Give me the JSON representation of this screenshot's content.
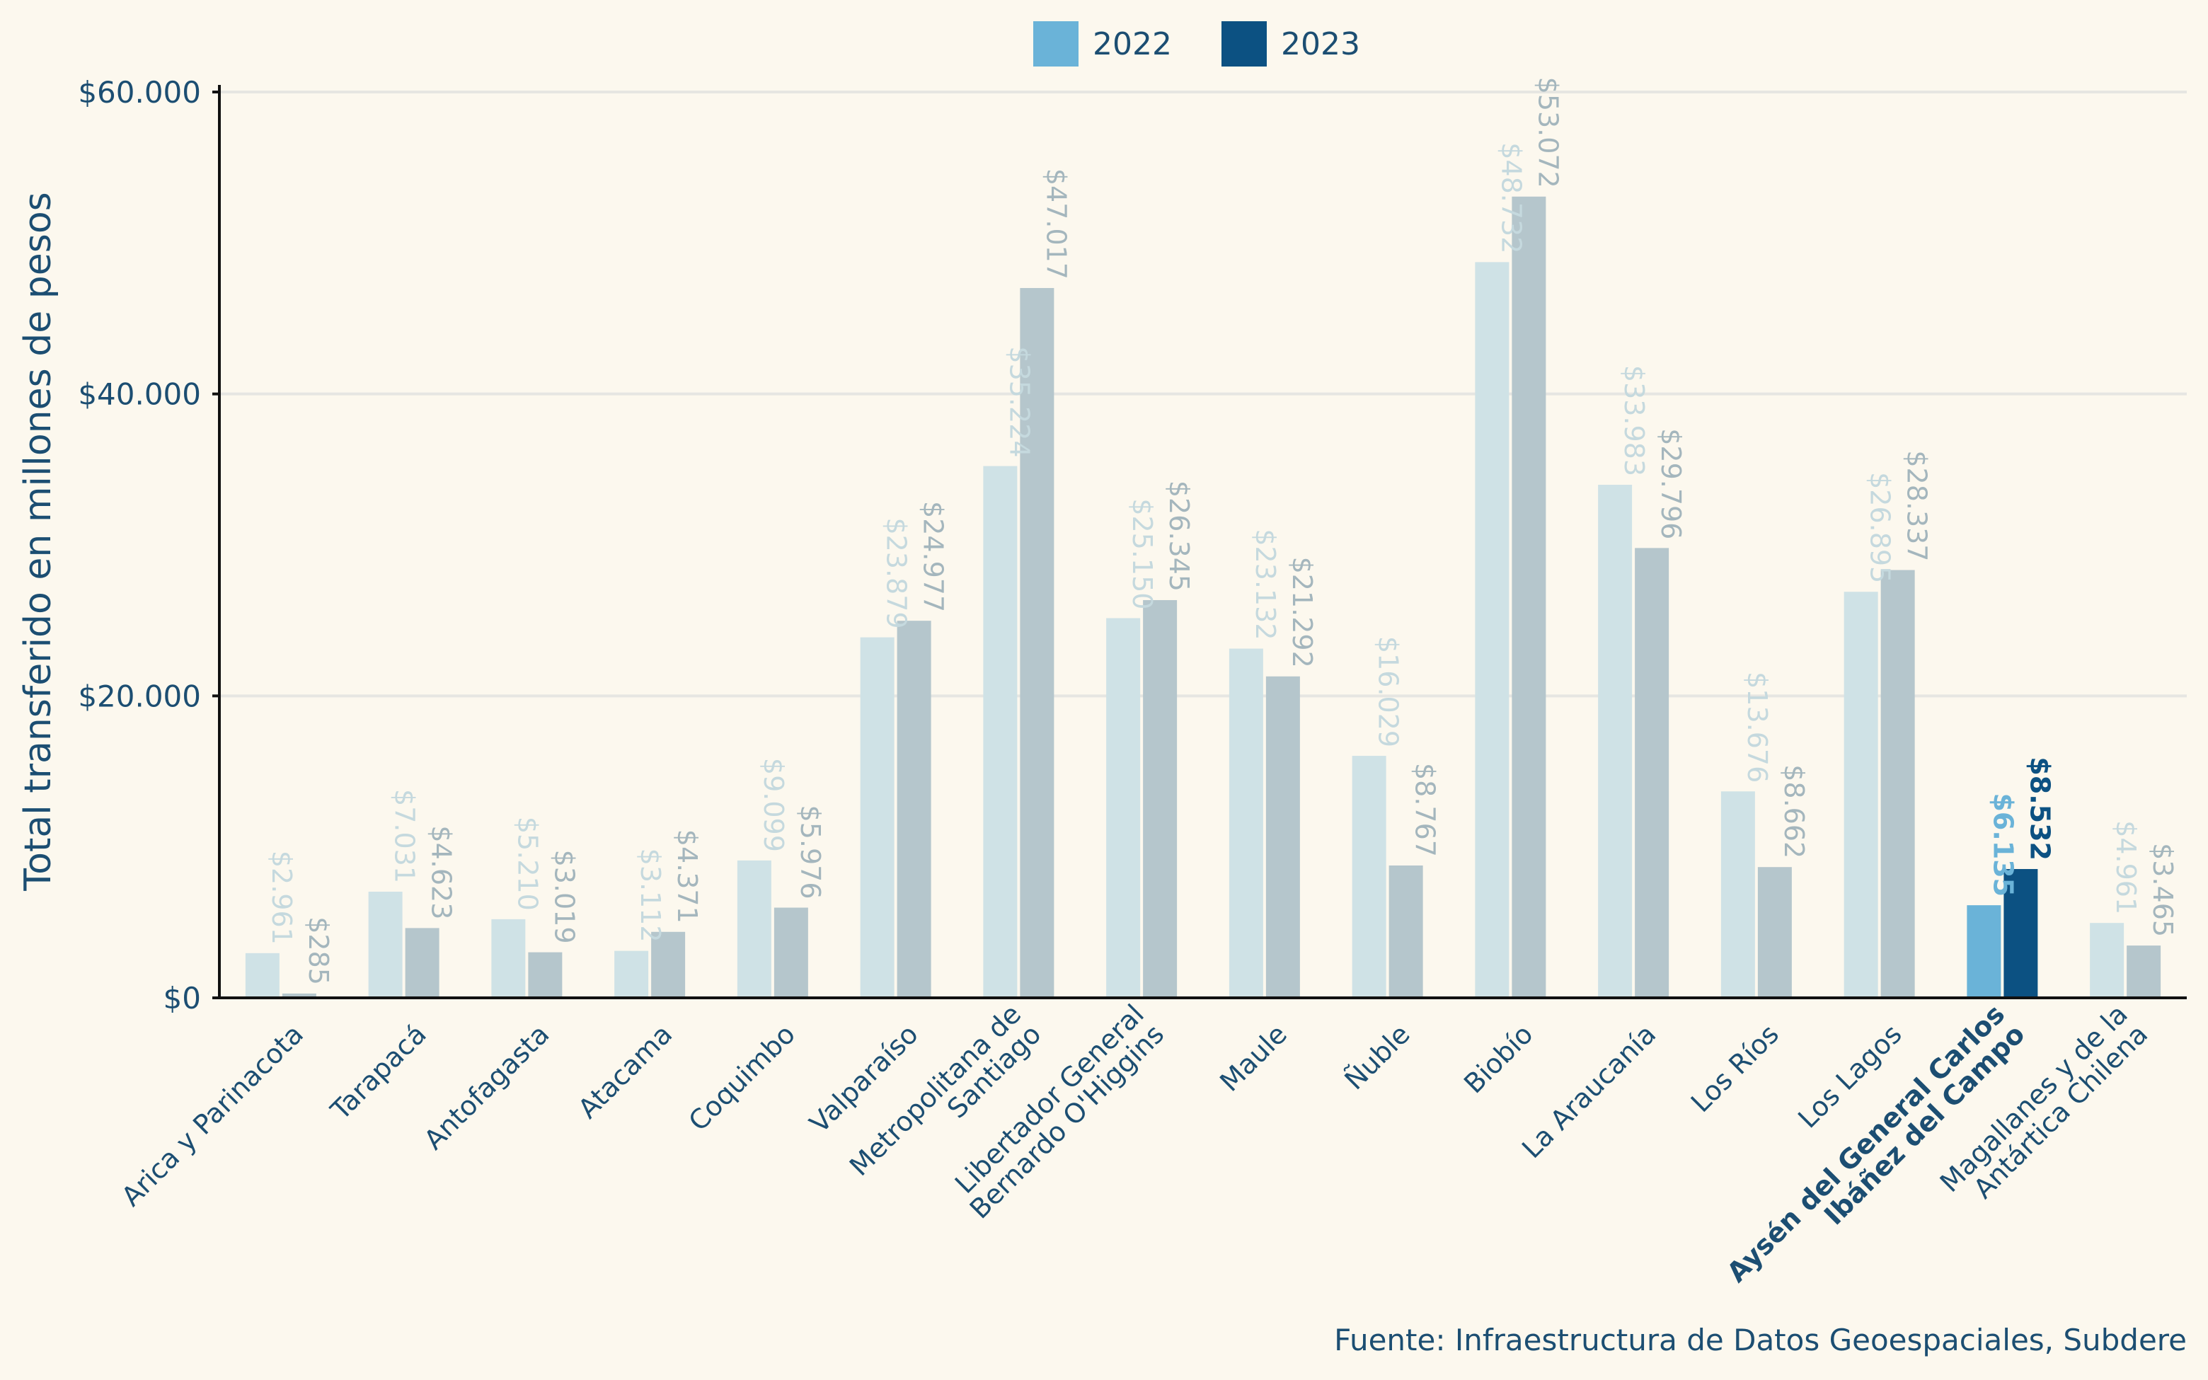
{
  "chart_data": {
    "type": "bar",
    "ylabel": "Total transferido en millones de pesos",
    "source": "Fuente: Infraestructura de Datos Geoespaciales, Subdere",
    "ylim": [
      0,
      60000
    ],
    "yticks": [
      0,
      20000,
      40000,
      60000
    ],
    "ytick_labels": [
      "$0",
      "$20.000",
      "$40.000",
      "$60.000"
    ],
    "grid": "horizontal",
    "legend_position": "top",
    "highlight_index": 14,
    "categories": [
      [
        "Arica y Parinacota"
      ],
      [
        "Tarapacá"
      ],
      [
        "Antofagasta"
      ],
      [
        "Atacama"
      ],
      [
        "Coquimbo"
      ],
      [
        "Valparaíso"
      ],
      [
        "Metropolitana de",
        "Santiago"
      ],
      [
        "Libertador General",
        "Bernardo O'Higgins"
      ],
      [
        "Maule"
      ],
      [
        "Ñuble"
      ],
      [
        "Biobío"
      ],
      [
        "La Araucanía"
      ],
      [
        "Los Ríos"
      ],
      [
        "Los Lagos"
      ],
      [
        "Aysén del General Carlos",
        "Ibáñez del Campo"
      ],
      [
        "Magallanes y de la",
        "Antártica Chilena"
      ]
    ],
    "series": [
      {
        "name": "2022",
        "color": "#6ab3d8",
        "muted_color": "#cfe2e6",
        "values": [
          2961,
          7031,
          5210,
          3112,
          9099,
          23879,
          35224,
          25150,
          23132,
          16029,
          48732,
          33983,
          13676,
          26895,
          6135,
          4961
        ],
        "labels": [
          "$2.961",
          "$7.031",
          "$5.210",
          "$3.112",
          "$9.099",
          "$23.879",
          "$35.224",
          "$25.150",
          "$23.132",
          "$16.029",
          "$48.732",
          "$33.983",
          "$13.676",
          "$26.895",
          "$6.135",
          "$4.961"
        ]
      },
      {
        "name": "2023",
        "color": "#0c5182",
        "muted_color": "#b5c6cc",
        "values": [
          285,
          4623,
          3019,
          4371,
          5976,
          24977,
          47017,
          26345,
          21292,
          8767,
          53072,
          29796,
          8662,
          28337,
          8532,
          3465
        ],
        "labels": [
          "$285",
          "$4.623",
          "$3.019",
          "$4.371",
          "$5.976",
          "$24.977",
          "$47.017",
          "$26.345",
          "$21.292",
          "$8.767",
          "$53.072",
          "$29.796",
          "$8.662",
          "$28.337",
          "$8.532",
          "$3.465"
        ]
      }
    ]
  }
}
